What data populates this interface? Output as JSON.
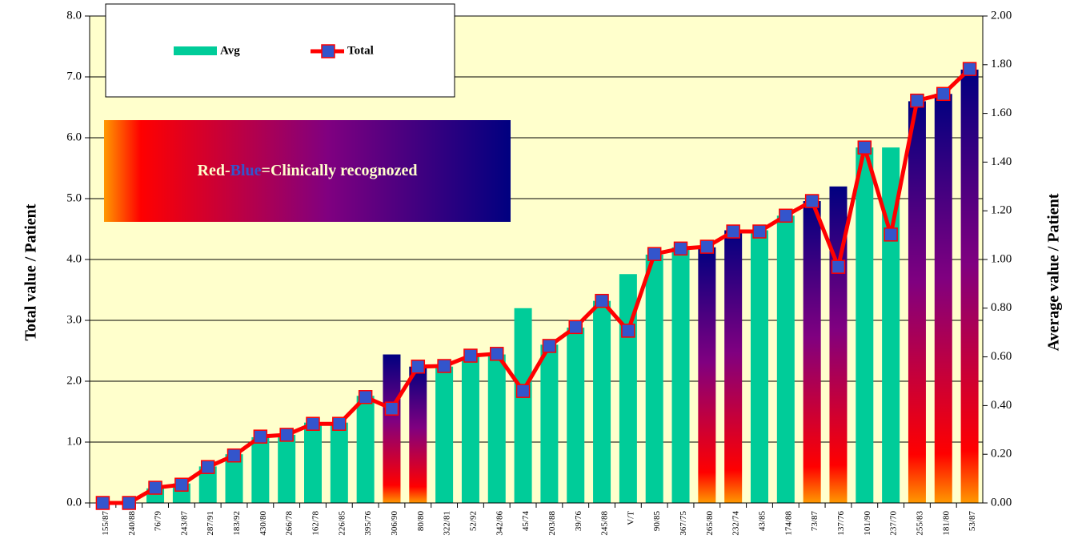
{
  "chart_data": {
    "type": "bar_line",
    "y_label": "Total value / Patient",
    "y2_label": "Average value / Patient",
    "annotation_parts": [
      "Red-",
      "Blue",
      "=Clinically recognozed"
    ],
    "categories": [
      "155/87",
      "240/88",
      "76/79",
      "243/87",
      "287/91",
      "183/92",
      "430/80",
      "266/78",
      "162/78",
      "226/85",
      "395/76",
      "306/90",
      "80/80",
      "322/81",
      "52/92",
      "342/86",
      "45/74",
      "203/88",
      "39/76",
      "245/88",
      "V/T",
      "90/85",
      "367/75",
      "265/80",
      "232/74",
      "43/85",
      "174/88",
      "73/87",
      "137/76",
      "101/90",
      "237/70",
      "255/83",
      "181/80",
      "53/87"
    ],
    "series": [
      {
        "name": "Avg",
        "color": "#00cc99",
        "axis": "y2",
        "highlight_gradient": [
          "#ff9900",
          "#ff0000",
          "#800080",
          "#000080"
        ],
        "highlighted": [
          11,
          12,
          23,
          24,
          27,
          28,
          31,
          32,
          33
        ],
        "values": [
          0,
          0,
          0.06,
          0.08,
          0.15,
          0.2,
          0.27,
          0.28,
          0.33,
          0.33,
          0.44,
          0.61,
          0.56,
          0.56,
          0.6,
          0.61,
          0.8,
          0.65,
          0.72,
          0.83,
          0.94,
          1.02,
          1.05,
          1.05,
          1.12,
          1.12,
          1.18,
          1.24,
          1.3,
          1.46,
          1.46,
          1.65,
          1.68,
          1.78
        ]
      },
      {
        "name": "Total",
        "color": "#ff0000",
        "marker_color": "#3355cc",
        "axis": "y",
        "values": [
          0,
          0,
          0.25,
          0.3,
          0.59,
          0.78,
          1.09,
          1.12,
          1.3,
          1.3,
          1.74,
          1.55,
          2.24,
          2.25,
          2.42,
          2.45,
          1.84,
          2.58,
          2.89,
          3.32,
          2.83,
          4.09,
          4.18,
          4.21,
          4.46,
          4.46,
          4.72,
          4.96,
          3.88,
          5.84,
          4.41,
          6.61,
          6.72,
          7.13
        ]
      }
    ],
    "ylim": [
      0,
      8
    ],
    "yticks": [
      {
        "value": 0,
        "label": "0.0"
      },
      {
        "value": 1,
        "label": "1.0"
      },
      {
        "value": 2,
        "label": "2.0"
      },
      {
        "value": 3,
        "label": "3.0"
      },
      {
        "value": 4,
        "label": "4.0"
      },
      {
        "value": 5,
        "label": "5.0"
      },
      {
        "value": 6,
        "label": "6.0"
      },
      {
        "value": 7,
        "label": "7.0"
      },
      {
        "value": 8,
        "label": "8.0"
      }
    ],
    "y2lim": [
      0,
      2
    ],
    "y2ticks": [
      {
        "value": 0,
        "label": "0.00"
      },
      {
        "value": 0.2,
        "label": "0.20"
      },
      {
        "value": 0.4,
        "label": "0.40"
      },
      {
        "value": 0.6,
        "label": "0.60"
      },
      {
        "value": 0.8,
        "label": "0.80"
      },
      {
        "value": 1,
        "label": "1.00"
      },
      {
        "value": 1.2,
        "label": "1.20"
      },
      {
        "value": 1.4,
        "label": "1.40"
      },
      {
        "value": 1.6,
        "label": "1.60"
      },
      {
        "value": 1.8,
        "label": "1.80"
      },
      {
        "value": 2,
        "label": "2.00"
      }
    ],
    "grid": true,
    "background": "#ffffcc"
  }
}
